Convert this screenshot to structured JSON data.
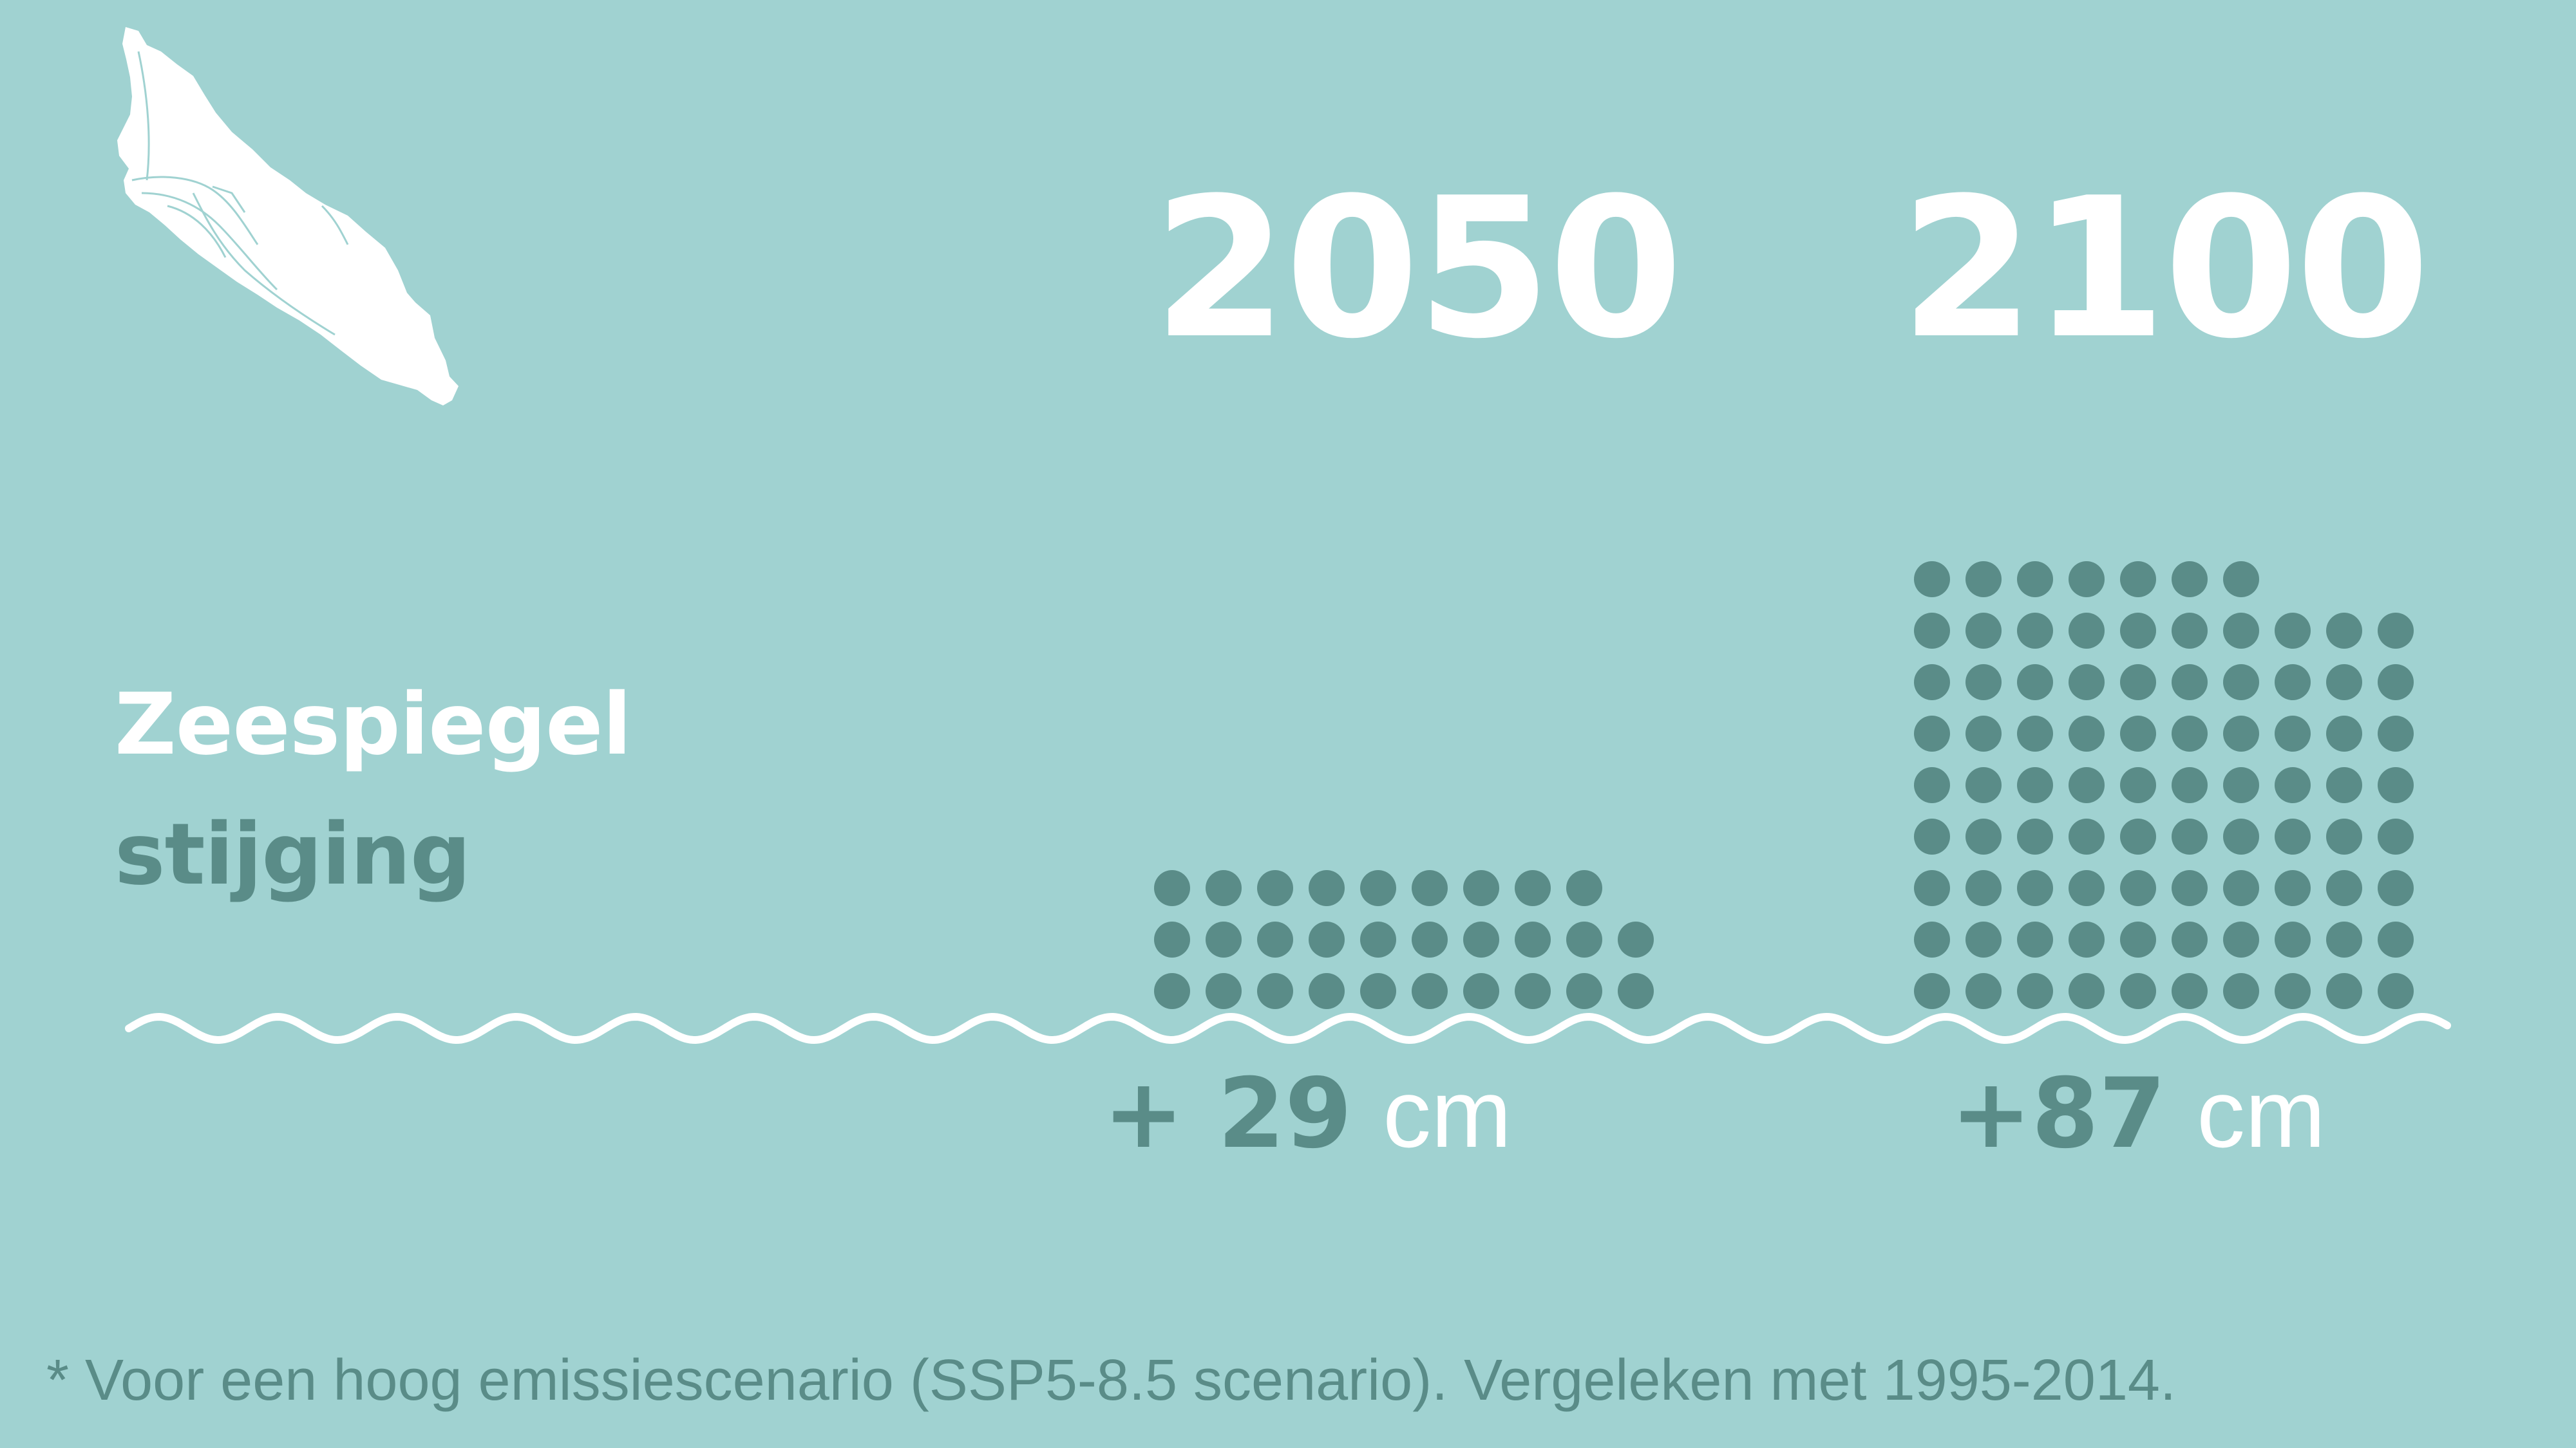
{
  "title": {
    "line1": "Zeespiegel",
    "line2": "stijging"
  },
  "chart_data": {
    "type": "dot-matrix",
    "categories": [
      "2050",
      "2100"
    ],
    "values": [
      29,
      87
    ],
    "unit": "cm",
    "value_labels": [
      {
        "number": "+ 29",
        "unit": "cm"
      },
      {
        "number": "+87",
        "unit": "cm"
      }
    ]
  },
  "footnote": "* Voor een hoog emissiescenario (SSP5-8.5 scenario). Vergeleken met 1995-2014.",
  "colors": {
    "background": "#a0d2d1",
    "dot": "#5a8c88",
    "text_primary": "#ffffff",
    "text_accent": "#5a8c88",
    "wave": "#ffffff",
    "island": "#ffffff"
  },
  "icons": {
    "map": "aruba-island-map-icon"
  }
}
